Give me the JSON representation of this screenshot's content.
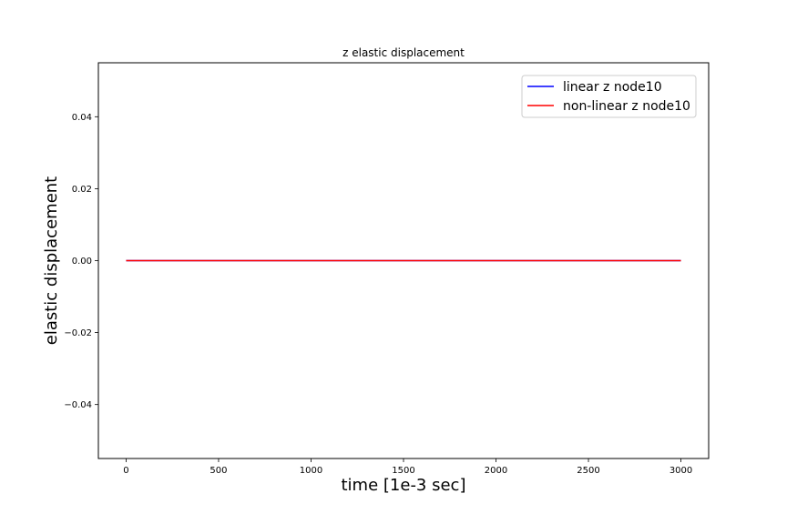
{
  "chart_data": {
    "type": "line",
    "title": "z elastic displacement",
    "xlabel": "time [1e-3 sec]",
    "ylabel": "elastic displacement",
    "xlim": [
      -150,
      3150
    ],
    "ylim": [
      -0.055,
      0.055
    ],
    "xticks": [
      0,
      500,
      1000,
      1500,
      2000,
      2500,
      3000
    ],
    "xtick_labels": [
      "0",
      "500",
      "1000",
      "1500",
      "2000",
      "2500",
      "3000"
    ],
    "yticks": [
      -0.04,
      -0.02,
      0.0,
      0.02,
      0.04
    ],
    "ytick_labels": [
      "−0.04",
      "−0.02",
      "0.00",
      "0.02",
      "0.04"
    ],
    "grid": false,
    "legend_position": "top-right",
    "series": [
      {
        "name": "linear z node10",
        "color": "#0000ff",
        "x": [
          0,
          3000
        ],
        "y": [
          0,
          0
        ]
      },
      {
        "name": "non-linear z node10",
        "color": "#ff0000",
        "x": [
          0,
          3000
        ],
        "y": [
          0,
          0
        ]
      }
    ]
  }
}
